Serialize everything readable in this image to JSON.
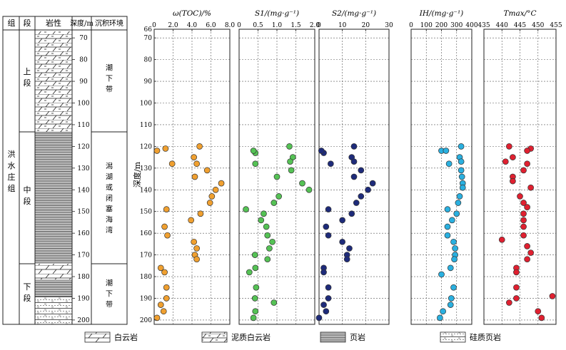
{
  "column_table": {
    "headers": {
      "formation": "组",
      "member": "段",
      "lithology": "岩性",
      "depth": "深度/m",
      "environment": "沉积环境"
    },
    "formation_name": "洪水庄组",
    "members": [
      {
        "name": "上段",
        "from": 64,
        "to": 116,
        "environment": "潮下带",
        "lithology": "泥质白云岩"
      },
      {
        "name": "中段",
        "from": 116,
        "to": 180,
        "environment": "潟湖或闭塞海湾",
        "lithology": "页岩"
      },
      {
        "name": "下段",
        "from": 180,
        "to": 202,
        "environment": "潮下带",
        "lithology": "白云岩/硅质页岩/页岩 互层"
      }
    ],
    "depth_ticks": [
      70,
      80,
      90,
      100,
      110,
      120,
      130,
      140,
      150,
      160,
      170,
      180,
      190,
      200
    ]
  },
  "legend": [
    {
      "key": "dolomite",
      "label": "白云岩"
    },
    {
      "key": "argillaceous-dolomite",
      "label": "泥质白云岩"
    },
    {
      "key": "shale",
      "label": "页岩"
    },
    {
      "key": "siliceous-shale",
      "label": "硅质页岩"
    }
  ],
  "shared_axis": {
    "ylabel": "深度/m",
    "ylim": [
      66,
      202
    ],
    "yticks": [
      66,
      70,
      80,
      90,
      100,
      110,
      120,
      130,
      140,
      150,
      160,
      170,
      180,
      190,
      200
    ],
    "inverted": true
  },
  "chart_data": [
    {
      "type": "scatter",
      "title": "ω(TOC)/%",
      "xlim": [
        0,
        8
      ],
      "xticks": [
        0,
        2.0,
        4.0,
        6.0,
        8.0
      ],
      "xticklabels": [
        "0",
        "2.0",
        "4.0",
        "6.0",
        "8.0"
      ],
      "color": "#f0a030",
      "grid": true,
      "x": [
        4.8,
        0.3,
        1.2,
        4.2,
        4.5,
        1.9,
        5.6,
        4.3,
        7.1,
        6.5,
        6.1,
        5.9,
        1.3,
        4.9,
        3.9,
        1.1,
        1.4,
        4.2,
        4.5,
        4.3,
        4.5,
        0.7,
        1.1,
        1.3,
        1.3,
        0.7,
        1.0,
        0.3
      ],
      "y": [
        120,
        122,
        121,
        125,
        128,
        128,
        131,
        134,
        137,
        140,
        143,
        146,
        149,
        151,
        154,
        157,
        161,
        164,
        167,
        170,
        172,
        176,
        178,
        185,
        190,
        193,
        196,
        199
      ]
    },
    {
      "type": "scatter",
      "title": "S1/(mg·g⁻¹)",
      "xlim": [
        0,
        2.0
      ],
      "xticks": [
        0,
        0.5,
        1.0,
        1.5,
        2.0
      ],
      "xticklabels": [
        "0",
        "0.5",
        "1.0",
        "1.5",
        "2.0"
      ],
      "color": "#55c255",
      "grid": true,
      "x": [
        1.33,
        0.43,
        0.38,
        1.42,
        1.35,
        0.43,
        1.38,
        1.0,
        1.67,
        1.85,
        1.05,
        0.92,
        0.18,
        0.65,
        0.58,
        0.72,
        0.75,
        0.88,
        0.8,
        0.42,
        0.75,
        0.43,
        0.27,
        0.45,
        0.42,
        0.92,
        0.43,
        0.38
      ],
      "y": [
        120,
        123,
        122,
        125,
        127,
        128,
        131,
        134,
        137,
        140,
        143,
        146,
        149,
        151,
        154,
        157,
        161,
        164,
        167,
        170,
        172,
        176,
        178,
        185,
        190,
        192,
        196,
        199
      ]
    },
    {
      "type": "scatter",
      "title": "S2/(mg·g⁻¹)",
      "xlim": [
        0,
        30
      ],
      "xticks": [
        0,
        10,
        20,
        30
      ],
      "xticklabels": [
        "0",
        "10",
        "20",
        "30"
      ],
      "color": "#1e2b7a",
      "grid": true,
      "x": [
        15,
        2,
        1,
        14,
        15,
        5,
        18,
        15,
        23,
        21,
        18,
        16,
        4,
        14,
        10,
        3,
        4,
        10,
        13,
        12,
        12,
        2,
        2,
        4,
        4,
        2,
        3,
        0
      ],
      "y": [
        120,
        123,
        122,
        125,
        127,
        128,
        131,
        134,
        137,
        140,
        143,
        146,
        149,
        151,
        154,
        157,
        161,
        164,
        167,
        170,
        172,
        176,
        178,
        185,
        190,
        193,
        196,
        199
      ]
    },
    {
      "type": "scatter",
      "title": "IH/(mg·g⁻¹)",
      "xlim": [
        0,
        400
      ],
      "xticks": [
        0,
        100,
        200,
        300,
        400
      ],
      "xticklabels": [
        "0",
        "100",
        "200",
        "300",
        "400"
      ],
      "color": "#2ab0e0",
      "grid": true,
      "x": [
        330,
        200,
        230,
        320,
        330,
        250,
        330,
        335,
        340,
        340,
        320,
        310,
        240,
        300,
        270,
        240,
        240,
        280,
        290,
        290,
        285,
        260,
        200,
        280,
        265,
        260,
        210,
        190
      ],
      "y": [
        120,
        122,
        122,
        125,
        127,
        128,
        131,
        134,
        137,
        139,
        143,
        146,
        149,
        151,
        154,
        157,
        161,
        164,
        167,
        170,
        172,
        176,
        179,
        185,
        190,
        193,
        196,
        199
      ]
    },
    {
      "type": "scatter",
      "title": "Tmax/°C",
      "xlim": [
        435,
        455
      ],
      "xticks": [
        435,
        440,
        445,
        450,
        455
      ],
      "xticklabels": [
        "435",
        "440",
        "445",
        "450",
        "455"
      ],
      "color": "#e02030",
      "grid": true,
      "x": [
        442,
        448,
        447,
        443,
        441,
        447,
        446,
        443,
        443,
        448,
        445,
        446,
        447,
        446,
        446,
        446,
        446,
        440,
        447,
        448,
        447,
        444,
        444,
        444,
        444,
        454,
        450,
        451,
        442
      ],
      "y": [
        120,
        121,
        122,
        125,
        127,
        128,
        131,
        134,
        136,
        139,
        143,
        146,
        148,
        151,
        154,
        157,
        161,
        163,
        166,
        169,
        172,
        176,
        178,
        185,
        190,
        189,
        196,
        199,
        192
      ]
    }
  ]
}
